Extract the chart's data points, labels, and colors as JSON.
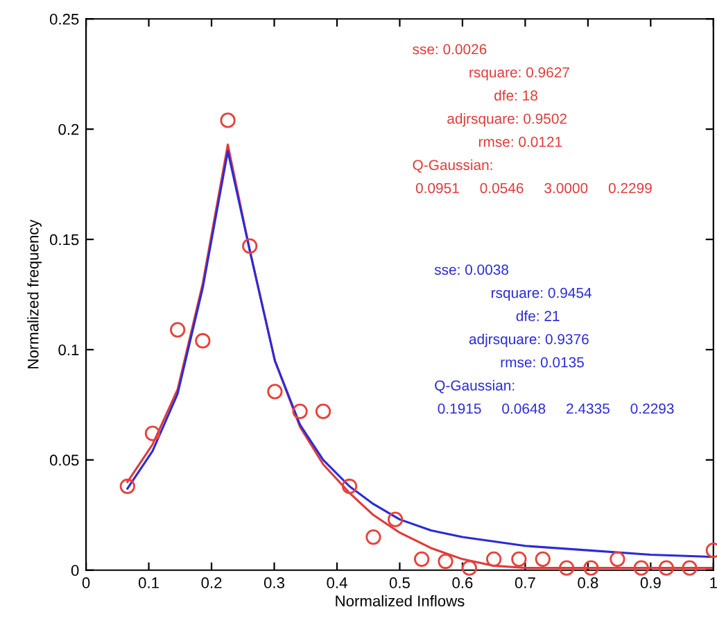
{
  "chart_data": {
    "type": "scatter",
    "xlabel": "Normalized Inflows",
    "ylabel": "Normalized frequency",
    "xlim": [
      0,
      1
    ],
    "ylim": [
      0,
      0.25
    ],
    "xticks": [
      0,
      0.1,
      0.2,
      0.3,
      0.4,
      0.5,
      0.6,
      0.7,
      0.8,
      0.9,
      1
    ],
    "yticks": [
      0,
      0.05,
      0.1,
      0.15,
      0.2,
      0.25
    ],
    "grid": false,
    "legend": false,
    "series": [
      {
        "marker": "circle",
        "color": "#e8413a",
        "x": [
          0.066,
          0.106,
          0.146,
          0.186,
          0.226,
          0.261,
          0.301,
          0.341,
          0.378,
          0.42,
          0.458,
          0.493,
          0.535,
          0.573,
          0.611,
          0.65,
          0.69,
          0.728,
          0.766,
          0.805,
          0.847,
          0.885,
          0.925,
          0.962,
          1.0
        ],
        "values": [
          0.038,
          0.062,
          0.109,
          0.104,
          0.204,
          0.147,
          0.081,
          0.072,
          0.072,
          0.038,
          0.015,
          0.023,
          0.005,
          0.004,
          0.001,
          0.005,
          0.005,
          0.005,
          0.001,
          0.001,
          0.005,
          0.001,
          0.001,
          0.001,
          0.009
        ]
      },
      {
        "type": "line",
        "color": "#e03a3a",
        "x": [
          0.066,
          0.106,
          0.146,
          0.186,
          0.226,
          0.261,
          0.301,
          0.341,
          0.378,
          0.42,
          0.458,
          0.5,
          0.55,
          0.6,
          0.65,
          0.7,
          0.8,
          1.0
        ],
        "values": [
          0.04,
          0.057,
          0.082,
          0.13,
          0.193,
          0.145,
          0.095,
          0.065,
          0.048,
          0.035,
          0.025,
          0.017,
          0.01,
          0.005,
          0.002,
          0.001,
          0.001,
          0.001
        ]
      },
      {
        "type": "line",
        "color": "#2b2bd8",
        "x": [
          0.066,
          0.106,
          0.146,
          0.186,
          0.226,
          0.261,
          0.301,
          0.341,
          0.378,
          0.42,
          0.458,
          0.5,
          0.55,
          0.6,
          0.7,
          0.8,
          0.9,
          1.0
        ],
        "values": [
          0.037,
          0.054,
          0.08,
          0.128,
          0.19,
          0.145,
          0.095,
          0.066,
          0.05,
          0.038,
          0.03,
          0.023,
          0.018,
          0.015,
          0.011,
          0.009,
          0.007,
          0.006
        ]
      }
    ],
    "annotations": [
      "sse: 0.0026",
      "rsquare: 0.9627",
      "dfe: 18",
      "adjrsquare: 0.9502",
      "rmse: 0.0121",
      "Q-Gaussian:",
      "0.0951     0.0546     3.0000     0.2299",
      "sse: 0.0038",
      "rsquare: 0.9454",
      "dfe: 21",
      "adjrsquare: 0.9376",
      "rmse: 0.0135",
      "Q-Gaussian:",
      "0.1915     0.0648     2.4335     0.2293"
    ]
  }
}
